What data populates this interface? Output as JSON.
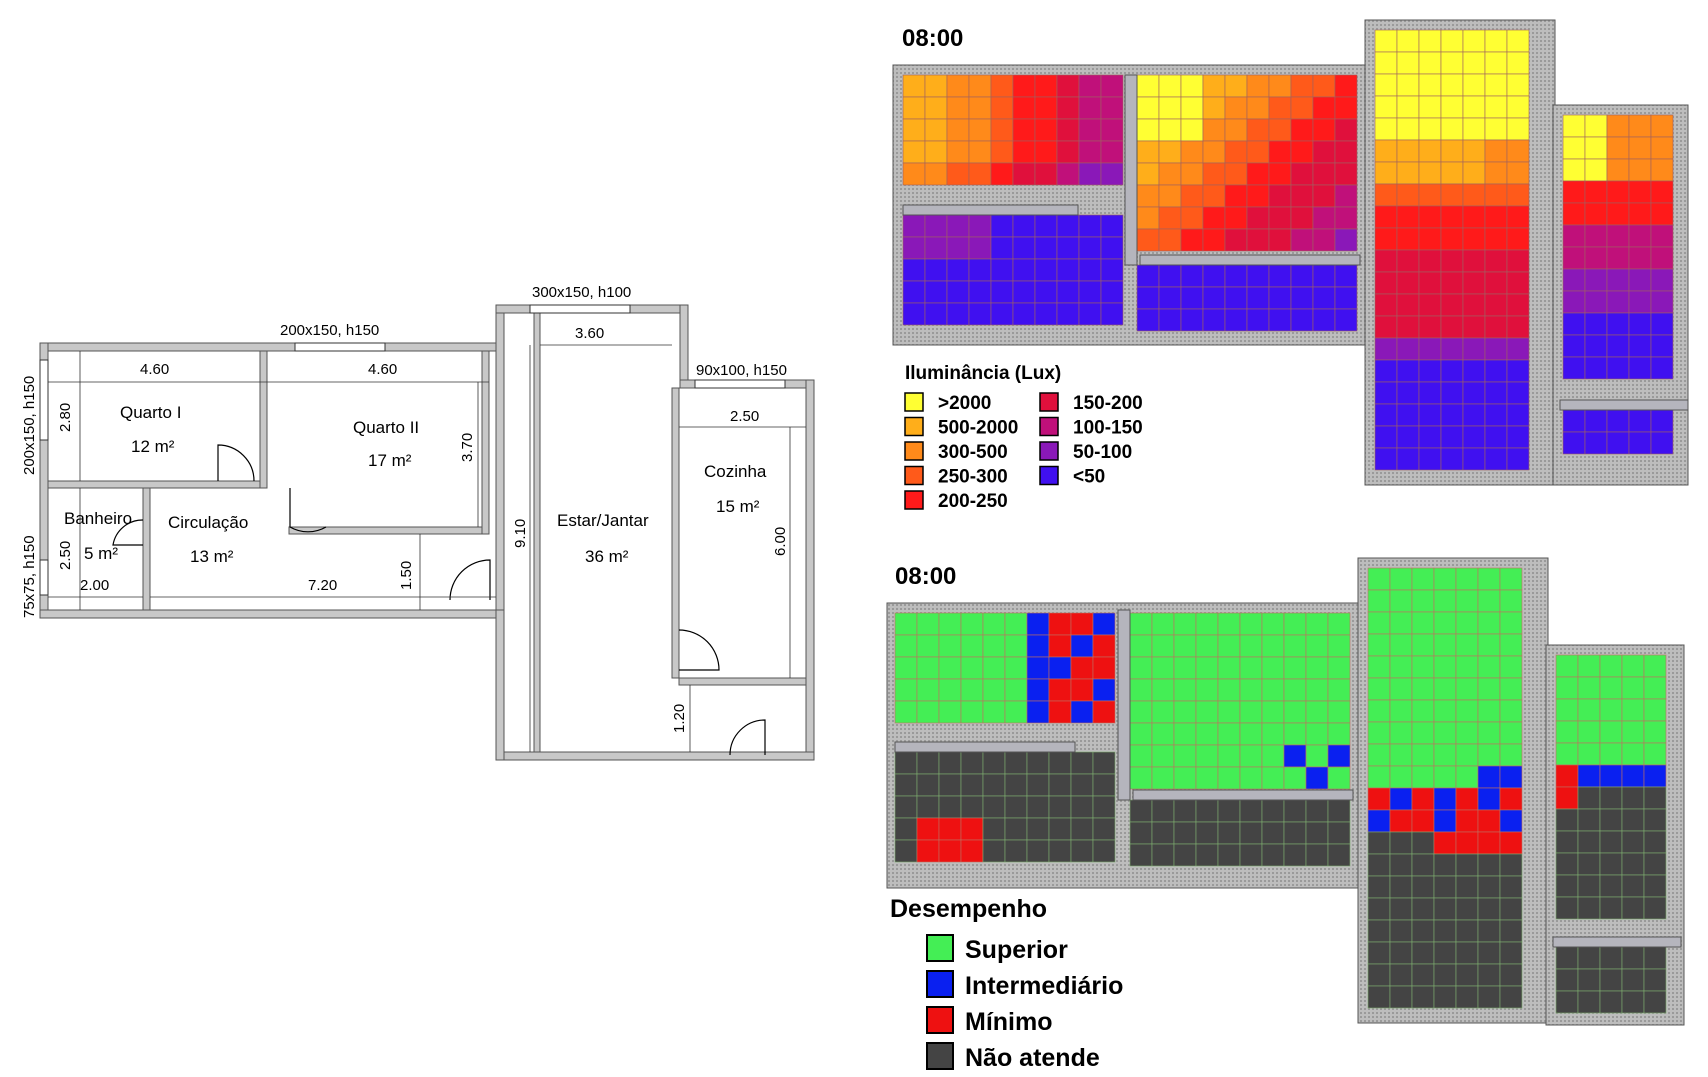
{
  "floor_plan": {
    "windows": [
      {
        "id": "w-quartos",
        "label": "200x150, h150"
      },
      {
        "id": "w-estar",
        "label": "300x150, h100"
      },
      {
        "id": "w-cozinha",
        "label": "90x100, h150"
      },
      {
        "id": "w-quarto1-side",
        "label": "200x150, h150"
      },
      {
        "id": "w-banheiro-side",
        "label": "75x75, h150"
      }
    ],
    "dimensions": [
      {
        "id": "d-q1-w",
        "label": "4.60"
      },
      {
        "id": "d-q2-w",
        "label": "4.60"
      },
      {
        "id": "d-estar-w",
        "label": "3.60"
      },
      {
        "id": "d-coz-w",
        "label": "2.50"
      },
      {
        "id": "d-q1-h",
        "label": "2.80"
      },
      {
        "id": "d-q2-h",
        "label": "3.70"
      },
      {
        "id": "d-ban-h",
        "label": "2.50"
      },
      {
        "id": "d-ban-w",
        "label": "2.00"
      },
      {
        "id": "d-circ-w",
        "label": "7.20"
      },
      {
        "id": "d-circ-h",
        "label": "1.50"
      },
      {
        "id": "d-estar-h",
        "label": "9.10"
      },
      {
        "id": "d-coz-h",
        "label": "6.00"
      },
      {
        "id": "d-ent-h",
        "label": "1.20"
      }
    ],
    "rooms": [
      {
        "id": "quarto1",
        "name": "Quarto I",
        "area": "12 m²"
      },
      {
        "id": "quarto2",
        "name": "Quarto II",
        "area": "17 m²"
      },
      {
        "id": "banheiro",
        "name": "Banheiro",
        "area": "5 m²"
      },
      {
        "id": "circulacao",
        "name": "Circulação",
        "area": "13 m²"
      },
      {
        "id": "estar",
        "name": "Estar/Jantar",
        "area": "36 m²"
      },
      {
        "id": "cozinha",
        "name": "Cozinha",
        "area": "15 m²"
      }
    ]
  },
  "illuminance_map": {
    "time": "08:00",
    "legend_title": "Iluminância (Lux)",
    "legend": [
      {
        "label": ">2000",
        "color": "#ffff33"
      },
      {
        "label": "500-2000",
        "color": "#ffae1a"
      },
      {
        "label": "300-500",
        "color": "#ff8a1a"
      },
      {
        "label": "250-300",
        "color": "#ff5a1a"
      },
      {
        "label": "200-250",
        "color": "#ff1a1a"
      },
      {
        "label": "150-200",
        "color": "#e0103c"
      },
      {
        "label": "100-150",
        "color": "#c0107a"
      },
      {
        "label": "50-100",
        "color": "#8a18b8"
      },
      {
        "label": "<50",
        "color": "#4010f0"
      }
    ]
  },
  "performance_map": {
    "time": "08:00",
    "legend_title": "Desempenho",
    "legend": [
      {
        "label": "Superior",
        "color": "#44ee55"
      },
      {
        "label": "Intermediário",
        "color": "#0a20f0"
      },
      {
        "label": "Mínimo",
        "color": "#ee1111"
      },
      {
        "label": "Não atende",
        "color": "#444444"
      }
    ]
  }
}
